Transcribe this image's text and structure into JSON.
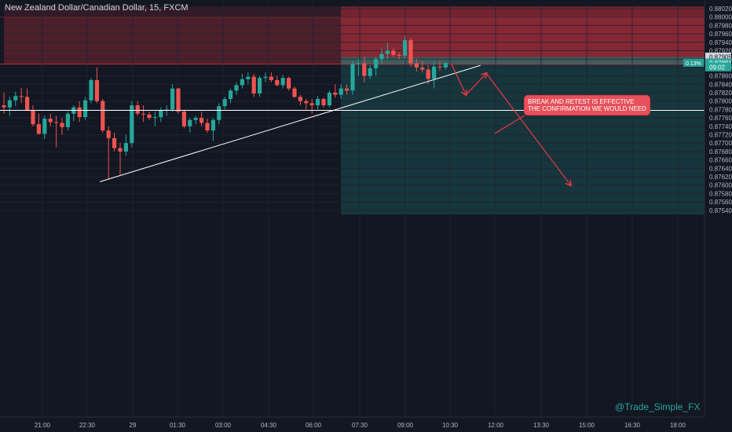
{
  "header": {
    "symbol_title": "New Zealand Dollar/Canadian Dollar, 15, FXCM"
  },
  "chart_data": {
    "type": "candlestick",
    "symbol": "New Zealand Dollar/Canadian Dollar",
    "interval": "15",
    "source": "FXCM",
    "y_ticks": [
      "0.88020",
      "0.88000",
      "0.87980",
      "0.87960",
      "0.87940",
      "0.87920",
      "0.87900",
      "0.87880",
      "0.87860",
      "0.87840",
      "0.87820",
      "0.87800",
      "0.87780",
      "0.87760",
      "0.87740",
      "0.87720",
      "0.87700",
      "0.87680",
      "0.87660",
      "0.87640",
      "0.87620",
      "0.87600",
      "0.87580",
      "0.87560",
      "0.87540"
    ],
    "x_ticks": [
      "21:00",
      "22:30",
      "29",
      "01:30",
      "03:00",
      "04:30",
      "06:00",
      "07:30",
      "09:00",
      "10:30",
      "12:00",
      "13:30",
      "15:00",
      "16:30",
      "18:00"
    ],
    "ylim": [
      0.8753,
      0.88025
    ],
    "price_labels": [
      {
        "text": "0.87905",
        "price": 0.87905,
        "style": "dark"
      },
      {
        "text": "0.87891",
        "price": 0.87891,
        "style": "teal",
        "change": "0.13%"
      },
      {
        "text": "09:02",
        "price": 0.87881,
        "style": "teal"
      }
    ],
    "colors": {
      "up": "#26a69a",
      "down": "#ef5350",
      "background": "#131722",
      "grid": "#1f2433",
      "line": "#ffffff",
      "arrow": "#f23645"
    },
    "zones": [
      {
        "name": "resistance-zone",
        "from": 0.87888,
        "to": 0.88,
        "start_bar": 0,
        "end": "right",
        "color": "rgba(242,54,69,0.26)"
      },
      {
        "name": "supply-zone",
        "from": 0.88,
        "to": 0.88025,
        "start_bar": 0,
        "end": "right",
        "color": "rgba(242,54,69,0.14)"
      },
      {
        "name": "session-red",
        "from": 0.87905,
        "to": 0.88025,
        "start_bar": 58,
        "end": "right",
        "color": "rgba(242,54,69,0.35)"
      },
      {
        "name": "session-green-band",
        "from": 0.87888,
        "to": 0.87905,
        "start_bar": 58,
        "end": "right",
        "color": "rgba(38,166,154,0.45)"
      },
      {
        "name": "session-green",
        "from": 0.8753,
        "to": 0.87888,
        "start_bar": 58,
        "end": "right",
        "color": "rgba(38,166,154,0.22)"
      }
    ],
    "horizontal_lines": [
      {
        "name": "support-line",
        "price": 0.87778
      }
    ],
    "trendline": {
      "from_bar": 16.5,
      "from_price": 0.87608,
      "to_bar": 82,
      "to_price": 0.87885
    },
    "arrow_path": [
      {
        "bar": 77,
        "price": 0.87888
      },
      {
        "bar": 79.5,
        "price": 0.87815
      },
      {
        "bar": 83,
        "price": 0.87866
      },
      {
        "bar": 97.5,
        "price": 0.876
      }
    ],
    "candles": [
      {
        "o": 0.8779,
        "h": 0.8782,
        "l": 0.8777,
        "c": 0.87785
      },
      {
        "o": 0.87785,
        "h": 0.8781,
        "l": 0.87765,
        "c": 0.87802
      },
      {
        "o": 0.87802,
        "h": 0.87822,
        "l": 0.87788,
        "c": 0.87812
      },
      {
        "o": 0.87812,
        "h": 0.87832,
        "l": 0.87795,
        "c": 0.8781
      },
      {
        "o": 0.8781,
        "h": 0.8783,
        "l": 0.8778,
        "c": 0.87778
      },
      {
        "o": 0.87778,
        "h": 0.8779,
        "l": 0.8774,
        "c": 0.87745
      },
      {
        "o": 0.87745,
        "h": 0.8777,
        "l": 0.8772,
        "c": 0.87722
      },
      {
        "o": 0.87722,
        "h": 0.87765,
        "l": 0.8771,
        "c": 0.87758
      },
      {
        "o": 0.87758,
        "h": 0.8777,
        "l": 0.8774,
        "c": 0.8775
      },
      {
        "o": 0.8775,
        "h": 0.87765,
        "l": 0.8769,
        "c": 0.87748
      },
      {
        "o": 0.87748,
        "h": 0.8776,
        "l": 0.8772,
        "c": 0.87738
      },
      {
        "o": 0.87738,
        "h": 0.87775,
        "l": 0.8773,
        "c": 0.8777
      },
      {
        "o": 0.8777,
        "h": 0.8779,
        "l": 0.87752,
        "c": 0.87785
      },
      {
        "o": 0.87785,
        "h": 0.878,
        "l": 0.8775,
        "c": 0.87762
      },
      {
        "o": 0.87762,
        "h": 0.8781,
        "l": 0.87755,
        "c": 0.87802
      },
      {
        "o": 0.87802,
        "h": 0.87855,
        "l": 0.87795,
        "c": 0.8785
      },
      {
        "o": 0.8785,
        "h": 0.8788,
        "l": 0.87795,
        "c": 0.878
      },
      {
        "o": 0.878,
        "h": 0.87805,
        "l": 0.87725,
        "c": 0.8773
      },
      {
        "o": 0.8773,
        "h": 0.8774,
        "l": 0.87615,
        "c": 0.87712
      },
      {
        "o": 0.87712,
        "h": 0.87725,
        "l": 0.8768,
        "c": 0.87688
      },
      {
        "o": 0.87688,
        "h": 0.877,
        "l": 0.87625,
        "c": 0.8768
      },
      {
        "o": 0.8768,
        "h": 0.8772,
        "l": 0.8767,
        "c": 0.877
      },
      {
        "o": 0.877,
        "h": 0.878,
        "l": 0.8769,
        "c": 0.8779
      },
      {
        "o": 0.8779,
        "h": 0.878,
        "l": 0.87765,
        "c": 0.8777
      },
      {
        "o": 0.8777,
        "h": 0.8779,
        "l": 0.8775,
        "c": 0.87768
      },
      {
        "o": 0.87768,
        "h": 0.87775,
        "l": 0.87755,
        "c": 0.8776
      },
      {
        "o": 0.8776,
        "h": 0.87775,
        "l": 0.8774,
        "c": 0.87762
      },
      {
        "o": 0.87762,
        "h": 0.87785,
        "l": 0.8775,
        "c": 0.87778
      },
      {
        "o": 0.87778,
        "h": 0.8779,
        "l": 0.87765,
        "c": 0.8778
      },
      {
        "o": 0.8778,
        "h": 0.8784,
        "l": 0.87775,
        "c": 0.8783
      },
      {
        "o": 0.8783,
        "h": 0.87832,
        "l": 0.8777,
        "c": 0.87775
      },
      {
        "o": 0.87775,
        "h": 0.8778,
        "l": 0.87735,
        "c": 0.8774
      },
      {
        "o": 0.8774,
        "h": 0.8776,
        "l": 0.87725,
        "c": 0.87755
      },
      {
        "o": 0.87755,
        "h": 0.87765,
        "l": 0.87745,
        "c": 0.8776
      },
      {
        "o": 0.8776,
        "h": 0.87775,
        "l": 0.8774,
        "c": 0.87748
      },
      {
        "o": 0.87748,
        "h": 0.87758,
        "l": 0.87725,
        "c": 0.8773
      },
      {
        "o": 0.8773,
        "h": 0.8776,
        "l": 0.87705,
        "c": 0.87755
      },
      {
        "o": 0.87755,
        "h": 0.87795,
        "l": 0.87745,
        "c": 0.87788
      },
      {
        "o": 0.87788,
        "h": 0.8781,
        "l": 0.8778,
        "c": 0.87805
      },
      {
        "o": 0.87805,
        "h": 0.8783,
        "l": 0.87795,
        "c": 0.87825
      },
      {
        "o": 0.87825,
        "h": 0.87845,
        "l": 0.87815,
        "c": 0.87838
      },
      {
        "o": 0.87838,
        "h": 0.87865,
        "l": 0.8783,
        "c": 0.87852
      },
      {
        "o": 0.87852,
        "h": 0.87868,
        "l": 0.8784,
        "c": 0.87858
      },
      {
        "o": 0.87858,
        "h": 0.87865,
        "l": 0.8781,
        "c": 0.87818
      },
      {
        "o": 0.87818,
        "h": 0.8786,
        "l": 0.8781,
        "c": 0.87855
      },
      {
        "o": 0.87855,
        "h": 0.87868,
        "l": 0.87845,
        "c": 0.87858
      },
      {
        "o": 0.87858,
        "h": 0.87868,
        "l": 0.87845,
        "c": 0.8785
      },
      {
        "o": 0.8785,
        "h": 0.8786,
        "l": 0.87835,
        "c": 0.87838
      },
      {
        "o": 0.87838,
        "h": 0.87862,
        "l": 0.8783,
        "c": 0.87855
      },
      {
        "o": 0.87855,
        "h": 0.87858,
        "l": 0.87825,
        "c": 0.8783
      },
      {
        "o": 0.8783,
        "h": 0.87835,
        "l": 0.87808,
        "c": 0.8781
      },
      {
        "o": 0.8781,
        "h": 0.87815,
        "l": 0.8779,
        "c": 0.878
      },
      {
        "o": 0.878,
        "h": 0.87805,
        "l": 0.8778,
        "c": 0.87795
      },
      {
        "o": 0.87795,
        "h": 0.87805,
        "l": 0.8777,
        "c": 0.8779
      },
      {
        "o": 0.8779,
        "h": 0.87812,
        "l": 0.8778,
        "c": 0.87805
      },
      {
        "o": 0.87805,
        "h": 0.87808,
        "l": 0.87785,
        "c": 0.8779
      },
      {
        "o": 0.8779,
        "h": 0.87825,
        "l": 0.87785,
        "c": 0.8782
      },
      {
        "o": 0.8782,
        "h": 0.8784,
        "l": 0.87808,
        "c": 0.87815
      },
      {
        "o": 0.87815,
        "h": 0.8784,
        "l": 0.87805,
        "c": 0.8783
      },
      {
        "o": 0.8783,
        "h": 0.8784,
        "l": 0.87815,
        "c": 0.87825
      },
      {
        "o": 0.87825,
        "h": 0.87895,
        "l": 0.87815,
        "c": 0.87888
      },
      {
        "o": 0.87888,
        "h": 0.879,
        "l": 0.8786,
        "c": 0.8789
      },
      {
        "o": 0.8789,
        "h": 0.87905,
        "l": 0.87845,
        "c": 0.8786
      },
      {
        "o": 0.8786,
        "h": 0.87885,
        "l": 0.87852,
        "c": 0.87878
      },
      {
        "o": 0.87878,
        "h": 0.87905,
        "l": 0.8786,
        "c": 0.879
      },
      {
        "o": 0.879,
        "h": 0.87925,
        "l": 0.8789,
        "c": 0.87912
      },
      {
        "o": 0.87912,
        "h": 0.8794,
        "l": 0.879,
        "c": 0.8792
      },
      {
        "o": 0.8792,
        "h": 0.87925,
        "l": 0.87905,
        "c": 0.8791
      },
      {
        "o": 0.8791,
        "h": 0.87915,
        "l": 0.879,
        "c": 0.87908
      },
      {
        "o": 0.87908,
        "h": 0.87955,
        "l": 0.879,
        "c": 0.87945
      },
      {
        "o": 0.87945,
        "h": 0.8795,
        "l": 0.87882,
        "c": 0.8789
      },
      {
        "o": 0.8789,
        "h": 0.879,
        "l": 0.8787,
        "c": 0.8788
      },
      {
        "o": 0.8788,
        "h": 0.87895,
        "l": 0.87868,
        "c": 0.87875
      },
      {
        "o": 0.87875,
        "h": 0.87885,
        "l": 0.8784,
        "c": 0.87853
      },
      {
        "o": 0.87853,
        "h": 0.87895,
        "l": 0.8783,
        "c": 0.87882
      },
      {
        "o": 0.87882,
        "h": 0.87895,
        "l": 0.87872,
        "c": 0.8788
      },
      {
        "o": 0.8788,
        "h": 0.87892,
        "l": 0.87875,
        "c": 0.87891
      }
    ]
  },
  "annotations": {
    "callout_line1": "BREAK AND RETEST IS EFFECTIVE",
    "callout_line2": "THE CONFIRMATION WE WOULD NEED"
  },
  "watermark": "@Trade_Simple_FX"
}
